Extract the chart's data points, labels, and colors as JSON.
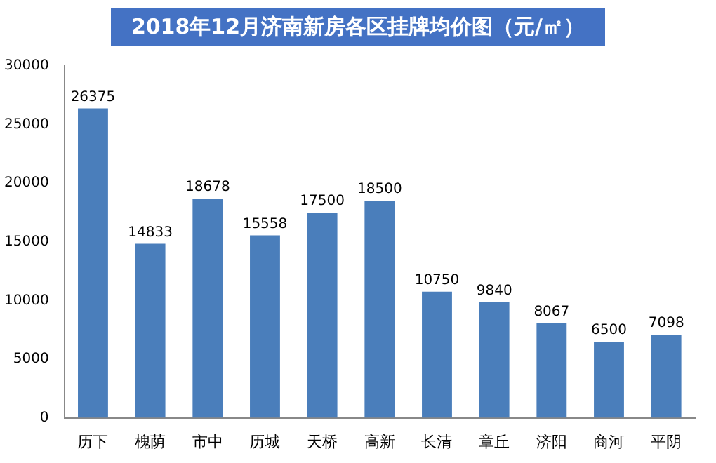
{
  "chart_data": {
    "type": "bar",
    "title": "2018年12月济南新房各区挂牌均价图（元/㎡）",
    "categories": [
      "历下",
      "槐荫",
      "市中",
      "历城",
      "天桥",
      "高新",
      "长清",
      "章丘",
      "济阳",
      "商河",
      "平阴"
    ],
    "values": [
      26375,
      14833,
      18678,
      15558,
      17500,
      18500,
      10750,
      9840,
      8067,
      6500,
      7098
    ],
    "color": "#4a7ebb",
    "ylim": [
      0,
      30000
    ],
    "yticks": [
      0,
      5000,
      10000,
      15000,
      20000,
      25000,
      30000
    ],
    "grid": false,
    "legend": false,
    "data_labels": true
  }
}
